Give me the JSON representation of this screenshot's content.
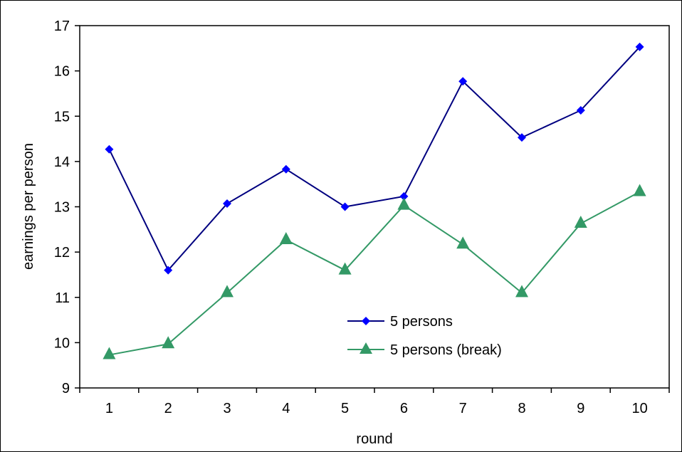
{
  "chart_data": {
    "type": "line",
    "title": "",
    "xlabel": "round",
    "ylabel": "earnings per person",
    "categories": [
      "1",
      "2",
      "3",
      "4",
      "5",
      "6",
      "7",
      "8",
      "9",
      "10"
    ],
    "ylim": [
      9,
      17
    ],
    "yticks": [
      9,
      10,
      11,
      12,
      13,
      14,
      15,
      16,
      17
    ],
    "grid": false,
    "legend_position": "center-right",
    "series": [
      {
        "name": "5 persons",
        "marker": "diamond",
        "line_color": "#000080",
        "marker_color": "#0000ff",
        "values": [
          14.27,
          11.6,
          13.07,
          13.83,
          13.0,
          13.23,
          15.77,
          14.53,
          15.13,
          16.53
        ]
      },
      {
        "name": "5 persons (break)",
        "marker": "triangle",
        "line_color": "#339966",
        "marker_color": "#339966",
        "values": [
          9.73,
          9.97,
          11.1,
          12.27,
          11.6,
          13.03,
          12.17,
          11.1,
          12.63,
          13.33
        ]
      }
    ]
  }
}
